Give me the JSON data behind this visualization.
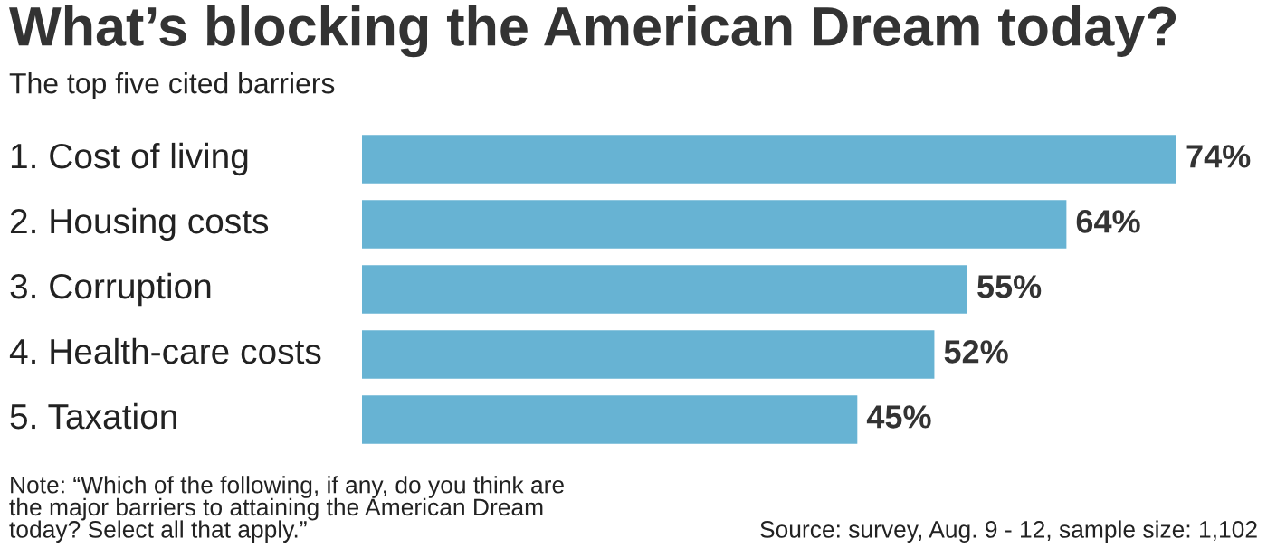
{
  "chart_data": {
    "type": "bar",
    "orientation": "horizontal",
    "title": "What’s blocking the American Dream today?",
    "subtitle": "The top five cited barriers",
    "categories": [
      "1. Cost of living",
      "2. Housing costs",
      "3. Corruption",
      "4. Health-care costs",
      "5. Taxation"
    ],
    "values": [
      74,
      64,
      55,
      52,
      45
    ],
    "value_labels": [
      "74%",
      "64%",
      "55%",
      "52%",
      "45%"
    ],
    "color": "#67b3d3",
    "annotations": [
      "Note: “Which of the following, if any, do you think are\nthe major barriers to attaining the American Dream\ntoday? Select all that apply.”",
      "Source: survey, Aug. 9 - 12, sample size: 1,102"
    ]
  }
}
